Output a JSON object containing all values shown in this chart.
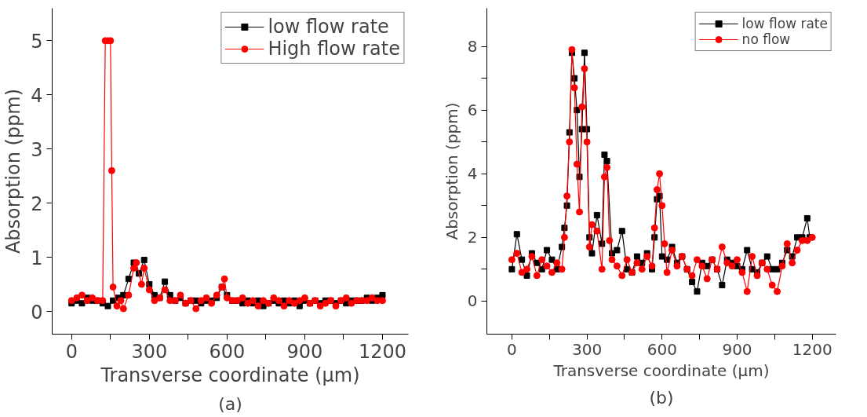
{
  "chart_data": [
    {
      "type": "line",
      "xlabel": "Transverse coordinate (μm)",
      "ylabel": "Absorption (ppm)",
      "annotations": [
        "(a)"
      ],
      "xlim": [
        -75,
        1300
      ],
      "ylim": [
        -0.42,
        5.6
      ],
      "xticks": [
        0,
        {
          "value": 150,
          "label": null
        },
        300,
        {
          "value": 450,
          "label": null
        },
        600,
        {
          "value": 750,
          "label": null
        },
        900,
        {
          "value": 1050,
          "label": null
        },
        1200
      ],
      "yticks": [
        0,
        1,
        2,
        3,
        4,
        5
      ],
      "grid": false,
      "legend": "top right",
      "line_style": "solid",
      "series": [
        {
          "name": "low flow rate",
          "color": "#000000",
          "marker": "square",
          "x": [
            0,
            20,
            40,
            60,
            80,
            100,
            120,
            140,
            160,
            180,
            200,
            220,
            240,
            260,
            280,
            300,
            320,
            340,
            360,
            380,
            400,
            420,
            440,
            460,
            480,
            500,
            520,
            540,
            560,
            580,
            600,
            620,
            640,
            660,
            680,
            700,
            720,
            740,
            760,
            780,
            800,
            820,
            840,
            860,
            880,
            900,
            920,
            940,
            960,
            980,
            1000,
            1020,
            1040,
            1060,
            1080,
            1100,
            1120,
            1140,
            1160,
            1180,
            1200
          ],
          "values": [
            0.15,
            0.2,
            0.15,
            0.25,
            0.2,
            0.2,
            0.15,
            0.1,
            0.2,
            0.25,
            0.3,
            0.6,
            0.9,
            0.7,
            0.95,
            0.5,
            0.3,
            0.25,
            0.55,
            0.3,
            0.2,
            0.25,
            0.15,
            0.2,
            0.2,
            0.15,
            0.2,
            0.2,
            0.25,
            0.45,
            0.3,
            0.2,
            0.2,
            0.15,
            0.2,
            0.15,
            0.2,
            0.1,
            0.15,
            0.2,
            0.15,
            0.2,
            0.15,
            0.2,
            0.1,
            0.2,
            0.15,
            0.2,
            0.15,
            0.2,
            0.2,
            0.15,
            0.2,
            0.15,
            0.2,
            0.2,
            0.2,
            0.25,
            0.2,
            0.25,
            0.3
          ]
        },
        {
          "name": "High flow rate",
          "color": "#ff0000",
          "marker": "circle",
          "x": [
            0,
            20,
            40,
            60,
            80,
            100,
            120,
            130,
            140,
            150,
            155,
            160,
            175,
            190,
            200,
            220,
            240,
            250,
            270,
            280,
            300,
            320,
            340,
            360,
            380,
            400,
            420,
            440,
            460,
            480,
            500,
            520,
            540,
            560,
            580,
            590,
            600,
            620,
            640,
            660,
            680,
            700,
            720,
            740,
            760,
            780,
            800,
            820,
            840,
            860,
            880,
            900,
            920,
            940,
            960,
            980,
            1000,
            1020,
            1040,
            1060,
            1080,
            1100,
            1120,
            1140,
            1160,
            1180,
            1200
          ],
          "values": [
            0.2,
            0.25,
            0.3,
            0.2,
            0.25,
            0.2,
            0.2,
            5.0,
            5.0,
            5.0,
            2.6,
            0.45,
            0.1,
            0.2,
            0.05,
            0.3,
            0.8,
            0.9,
            0.5,
            0.8,
            0.4,
            0.2,
            0.25,
            0.4,
            0.2,
            0.2,
            0.3,
            0.15,
            0.2,
            0.05,
            0.2,
            0.25,
            0.15,
            0.3,
            0.45,
            0.6,
            0.25,
            0.2,
            0.2,
            0.25,
            0.15,
            0.2,
            0.1,
            0.2,
            0.15,
            0.25,
            0.2,
            0.1,
            0.2,
            0.15,
            0.2,
            0.25,
            0.15,
            0.2,
            0.1,
            0.15,
            0.2,
            0.1,
            0.2,
            0.25,
            0.15,
            0.2,
            0.2,
            0.2,
            0.25,
            0.2,
            0.2
          ]
        }
      ]
    },
    {
      "type": "line",
      "xlabel": "Transverse coordinate (μm)",
      "ylabel": "Absorption (ppm)",
      "annotations": [
        "(b)"
      ],
      "xlim": [
        -100,
        1295
      ],
      "ylim": [
        -1.04,
        9.2
      ],
      "xticks": [
        0,
        {
          "value": 150,
          "label": null
        },
        300,
        {
          "value": 450,
          "label": null
        },
        600,
        {
          "value": 750,
          "label": null
        },
        900,
        {
          "value": 1050,
          "label": null
        },
        1200
      ],
      "yticks": [
        0,
        {
          "value": 1,
          "label": null
        },
        2,
        {
          "value": 3,
          "label": null
        },
        4,
        {
          "value": 5,
          "label": null
        },
        6,
        {
          "value": 7,
          "label": null
        },
        8
      ],
      "grid": false,
      "legend": "top right",
      "line_style": "solid",
      "series": [
        {
          "name": "low flow rate",
          "color": "#000000",
          "marker": "square",
          "x": [
            0,
            20,
            40,
            60,
            80,
            100,
            120,
            140,
            160,
            180,
            200,
            210,
            220,
            230,
            240,
            250,
            260,
            270,
            280,
            290,
            300,
            310,
            320,
            340,
            360,
            370,
            380,
            400,
            420,
            440,
            460,
            480,
            500,
            520,
            540,
            560,
            570,
            580,
            590,
            600,
            620,
            640,
            660,
            680,
            700,
            720,
            740,
            760,
            780,
            800,
            820,
            840,
            860,
            880,
            900,
            920,
            940,
            960,
            980,
            1000,
            1020,
            1040,
            1060,
            1080,
            1100,
            1120,
            1140,
            1160,
            1180,
            1190
          ],
          "values": [
            1.0,
            2.1,
            1.3,
            0.8,
            1.5,
            1.2,
            1.0,
            1.6,
            1.3,
            1.0,
            1.7,
            2.3,
            3.0,
            5.3,
            7.8,
            7.0,
            6.0,
            3.9,
            5.4,
            7.8,
            5.4,
            2.0,
            1.5,
            2.7,
            1.8,
            4.6,
            4.4,
            1.5,
            1.6,
            2.2,
            1.0,
            0.9,
            1.4,
            1.2,
            1.5,
            1.0,
            2.0,
            3.2,
            3.3,
            1.4,
            1.3,
            1.7,
            1.2,
            1.4,
            1.0,
            0.6,
            0.3,
            1.2,
            1.1,
            1.3,
            1.0,
            0.5,
            1.3,
            1.2,
            1.1,
            1.0,
            1.6,
            1.0,
            0.9,
            1.2,
            1.4,
            1.0,
            1.0,
            1.2,
            1.6,
            1.4,
            2.0,
            2.0,
            2.6,
            2.0
          ]
        },
        {
          "name": "no flow",
          "color": "#ff0000",
          "marker": "circle",
          "x": [
            0,
            20,
            40,
            60,
            80,
            100,
            120,
            140,
            160,
            180,
            200,
            210,
            220,
            230,
            240,
            250,
            260,
            270,
            280,
            290,
            300,
            310,
            320,
            340,
            360,
            370,
            380,
            390,
            400,
            420,
            440,
            460,
            480,
            500,
            520,
            540,
            560,
            570,
            580,
            590,
            600,
            610,
            620,
            640,
            660,
            680,
            700,
            720,
            740,
            760,
            780,
            800,
            820,
            840,
            860,
            880,
            900,
            920,
            940,
            960,
            980,
            1000,
            1020,
            1040,
            1060,
            1080,
            1100,
            1120,
            1140,
            1160,
            1180,
            1200
          ],
          "values": [
            1.3,
            1.5,
            0.9,
            1.0,
            1.4,
            0.8,
            1.3,
            1.1,
            0.9,
            1.2,
            1.0,
            2.0,
            3.3,
            5.0,
            7.9,
            6.7,
            4.3,
            2.8,
            6.1,
            7.3,
            5.0,
            1.7,
            2.4,
            2.2,
            1.0,
            3.9,
            4.2,
            1.9,
            1.3,
            1.1,
            0.8,
            1.3,
            0.9,
            1.2,
            1.0,
            1.4,
            1.1,
            2.3,
            3.5,
            4.0,
            3.0,
            1.8,
            0.9,
            1.6,
            1.1,
            1.4,
            1.0,
            0.8,
            1.3,
            1.1,
            0.7,
            1.3,
            1.0,
            1.7,
            1.2,
            1.1,
            1.3,
            0.9,
            0.3,
            1.4,
            0.8,
            1.2,
            1.0,
            0.5,
            0.3,
            1.1,
            1.8,
            1.2,
            1.6,
            1.9,
            1.9,
            2.0
          ]
        }
      ]
    }
  ]
}
